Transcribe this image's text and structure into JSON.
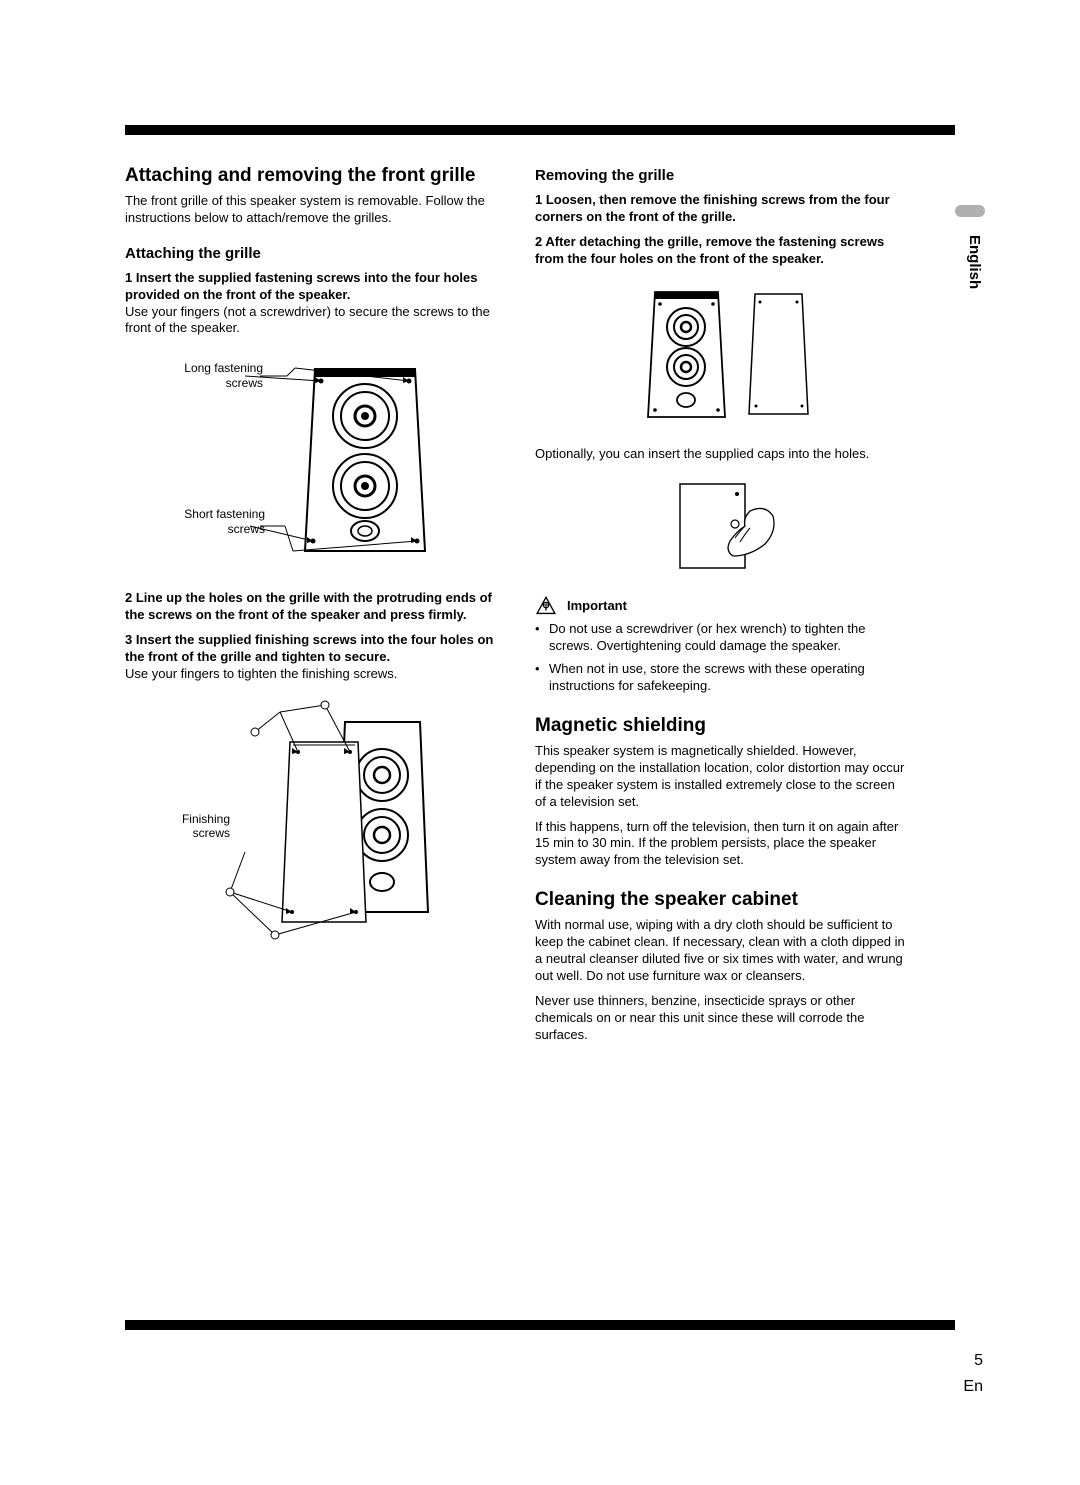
{
  "side_tab_label": "English",
  "page_number": "5",
  "page_lang": "En",
  "left": {
    "h2": "Attaching and removing the front grille",
    "intro": "The front grille of this speaker system is removable. Follow the instructions below to attach/remove the grilles.",
    "h3_attach": "Attaching the grille",
    "step1_bold": "1   Insert the supplied fastening screws into the four holes provided on the front of the speaker.",
    "step1_text": "Use your fingers (not a screwdriver) to secure the screws to the front of the speaker.",
    "fig1_label1": "Long fastening\nscrews",
    "fig1_label2": "Short fastening\nscrews",
    "step2_bold": "2   Line up the holes on the grille with the protruding ends of the screws on the front of the speaker and press firmly.",
    "step3_bold": "3   Insert the supplied finishing screws into the four holes on the front of the grille and tighten to secure.",
    "step3_text": "Use your fingers to tighten the finishing screws.",
    "fig2_label": "Finishing\nscrews"
  },
  "right": {
    "h3_remove": "Removing the grille",
    "step1_bold": "1   Loosen, then remove the finishing screws from the four corners on the front of the grille.",
    "step2_bold": "2   After detaching the grille, remove the fastening screws from the four holes on the front of the speaker.",
    "caption1": "Optionally, you can insert the supplied caps into the holes.",
    "important_label": "Important",
    "bullet1": "Do not use a screwdriver (or hex wrench) to tighten the screws. Overtightening could damage the speaker.",
    "bullet2": "When not in use, store the screws with these operating instructions for safekeeping.",
    "h2_mag": "Magnetic shielding",
    "mag_p1": "This speaker system is magnetically shielded. However, depending on the installation location, color distortion may occur if the speaker system is installed extremely close to the screen of a television set.",
    "mag_p2": "If this happens, turn off the television, then turn it on again after 15 min to 30 min. If the problem persists, place the speaker system away from the television set.",
    "h2_clean": "Cleaning the speaker cabinet",
    "clean_p1": "With normal use, wiping with a dry cloth should be sufficient to keep the cabinet clean. If necessary, clean with a cloth dipped in a neutral cleanser diluted five or six times with water, and wrung out well. Do not use furniture wax or cleansers.",
    "clean_p2": "Never use thinners, benzine, insecticide sprays or other chemicals on or near this unit since these will corrode the surfaces."
  },
  "colors": {
    "text": "#000000",
    "bg": "#ffffff",
    "tab": "#b0b0b0"
  }
}
